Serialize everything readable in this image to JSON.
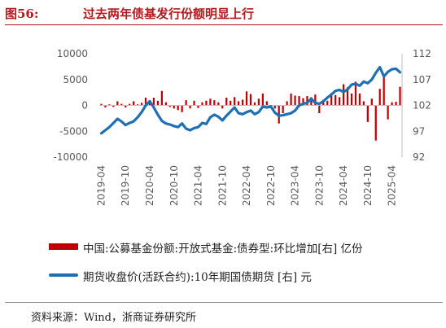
{
  "header": {
    "figure_no": "图56:",
    "title": "过去两年债基发行份额明显上行"
  },
  "legend": {
    "bar_label": "中国:公募基金份额:开放式基金:债券型:环比增加[右] 亿份",
    "line_label": "期货收盘价(活跃合约):10年期国债期货 [右] 元"
  },
  "source": "资料来源：Wind，浙商证券研究所",
  "chart_data": {
    "type": "bar",
    "title": "过去两年债基发行份额明显上行",
    "xlabel": "",
    "ylabel": "",
    "y_left": {
      "min": -10000,
      "max": 10000,
      "ticks": [
        "10000",
        "5000",
        "0",
        "-5000",
        "-10000"
      ]
    },
    "y_right": {
      "min": 92,
      "max": 112,
      "ticks": [
        "112",
        "107",
        "102",
        "97",
        "92"
      ]
    },
    "x_range": [
      "2019-04",
      "2025-06"
    ],
    "x_ticks": [
      "2019-04",
      "2019-10",
      "2020-04",
      "2020-10",
      "2021-04",
      "2021-10",
      "2022-04",
      "2022-10",
      "2023-04",
      "2023-10",
      "2024-04",
      "2024-10",
      "2025-04"
    ],
    "legend_position": "bottom",
    "grid": false,
    "series": [
      {
        "name": "中国:公募基金份额:开放式基金:债券型:环比增加[右] 亿份",
        "type": "bar",
        "axis": "left",
        "color": "#c00000",
        "points": [
          [
            "2019-04",
            300
          ],
          [
            "2019-05",
            -400
          ],
          [
            "2019-06",
            200
          ],
          [
            "2019-07",
            -300
          ],
          [
            "2019-08",
            800
          ],
          [
            "2019-09",
            300
          ],
          [
            "2019-10",
            -400
          ],
          [
            "2019-11",
            300
          ],
          [
            "2019-12",
            800
          ],
          [
            "2020-01",
            200
          ],
          [
            "2020-02",
            500
          ],
          [
            "2020-03",
            1500
          ],
          [
            "2020-04",
            1000
          ],
          [
            "2020-05",
            1500
          ],
          [
            "2020-06",
            900
          ],
          [
            "2020-07",
            2800
          ],
          [
            "2020-08",
            600
          ],
          [
            "2020-09",
            -300
          ],
          [
            "2020-10",
            -600
          ],
          [
            "2020-11",
            -900
          ],
          [
            "2020-12",
            -1300
          ],
          [
            "2021-01",
            1000
          ],
          [
            "2021-02",
            -600
          ],
          [
            "2021-03",
            900
          ],
          [
            "2021-04",
            -500
          ],
          [
            "2021-05",
            600
          ],
          [
            "2021-06",
            900
          ],
          [
            "2021-07",
            1300
          ],
          [
            "2021-08",
            1000
          ],
          [
            "2021-09",
            600
          ],
          [
            "2021-10",
            -600
          ],
          [
            "2021-11",
            1500
          ],
          [
            "2021-12",
            900
          ],
          [
            "2022-01",
            1600
          ],
          [
            "2022-02",
            800
          ],
          [
            "2022-03",
            1100
          ],
          [
            "2022-04",
            2700
          ],
          [
            "2022-05",
            2200
          ],
          [
            "2022-06",
            600
          ],
          [
            "2022-07",
            1300
          ],
          [
            "2022-08",
            2300
          ],
          [
            "2022-09",
            800
          ],
          [
            "2022-10",
            -400
          ],
          [
            "2022-11",
            -600
          ],
          [
            "2022-12",
            -3500
          ],
          [
            "2023-01",
            -1500
          ],
          [
            "2023-02",
            800
          ],
          [
            "2023-03",
            2300
          ],
          [
            "2023-04",
            1900
          ],
          [
            "2023-05",
            1800
          ],
          [
            "2023-06",
            1400
          ],
          [
            "2023-07",
            1800
          ],
          [
            "2023-08",
            1600
          ],
          [
            "2023-09",
            2100
          ],
          [
            "2023-10",
            -1500
          ],
          [
            "2023-11",
            1100
          ],
          [
            "2023-12",
            900
          ],
          [
            "2024-01",
            2400
          ],
          [
            "2024-02",
            2000
          ],
          [
            "2024-03",
            1600
          ],
          [
            "2024-04",
            4100
          ],
          [
            "2024-05",
            3500
          ],
          [
            "2024-06",
            2300
          ],
          [
            "2024-07",
            4600
          ],
          [
            "2024-08",
            2300
          ],
          [
            "2024-09",
            800
          ],
          [
            "2024-10",
            -3200
          ],
          [
            "2024-11",
            1300
          ],
          [
            "2024-12",
            -6800
          ],
          [
            "2025-01",
            3200
          ],
          [
            "2025-02",
            5700
          ],
          [
            "2025-03",
            -2700
          ],
          [
            "2025-04",
            600
          ],
          [
            "2025-05",
            700
          ],
          [
            "2025-06",
            3600
          ]
        ]
      },
      {
        "name": "期货收盘价(活跃合约):10年期国债期货 [右] 元",
        "type": "line",
        "axis": "right",
        "color": "#1f6fb5",
        "points": [
          [
            "2019-04",
            96.6
          ],
          [
            "2019-05",
            97.2
          ],
          [
            "2019-06",
            97.8
          ],
          [
            "2019-07",
            98.6
          ],
          [
            "2019-08",
            99.4
          ],
          [
            "2019-09",
            98.9
          ],
          [
            "2019-10",
            98.2
          ],
          [
            "2019-11",
            98.6
          ],
          [
            "2019-12",
            98.9
          ],
          [
            "2020-01",
            99.7
          ],
          [
            "2020-02",
            100.7
          ],
          [
            "2020-03",
            102.0
          ],
          [
            "2020-04",
            102.8
          ],
          [
            "2020-05",
            101.6
          ],
          [
            "2020-06",
            100.2
          ],
          [
            "2020-07",
            99.0
          ],
          [
            "2020-08",
            98.5
          ],
          [
            "2020-09",
            98.3
          ],
          [
            "2020-10",
            98.0
          ],
          [
            "2020-11",
            97.8
          ],
          [
            "2020-12",
            98.5
          ],
          [
            "2021-01",
            97.5
          ],
          [
            "2021-02",
            97.2
          ],
          [
            "2021-03",
            97.6
          ],
          [
            "2021-04",
            97.8
          ],
          [
            "2021-05",
            98.6
          ],
          [
            "2021-06",
            98.4
          ],
          [
            "2021-07",
            99.7
          ],
          [
            "2021-08",
            100.2
          ],
          [
            "2021-09",
            99.8
          ],
          [
            "2021-10",
            99.1
          ],
          [
            "2021-11",
            100.0
          ],
          [
            "2021-12",
            100.8
          ],
          [
            "2022-01",
            101.6
          ],
          [
            "2022-02",
            100.5
          ],
          [
            "2022-03",
            100.3
          ],
          [
            "2022-04",
            100.7
          ],
          [
            "2022-05",
            101.0
          ],
          [
            "2022-06",
            100.3
          ],
          [
            "2022-07",
            100.7
          ],
          [
            "2022-08",
            101.8
          ],
          [
            "2022-09",
            101.6
          ],
          [
            "2022-10",
            101.8
          ],
          [
            "2022-11",
            100.6
          ],
          [
            "2022-12",
            100.0
          ],
          [
            "2023-01",
            100.1
          ],
          [
            "2023-02",
            100.3
          ],
          [
            "2023-03",
            100.5
          ],
          [
            "2023-04",
            101.0
          ],
          [
            "2023-05",
            102.0
          ],
          [
            "2023-06",
            102.3
          ],
          [
            "2023-07",
            102.5
          ],
          [
            "2023-08",
            103.3
          ],
          [
            "2023-09",
            102.5
          ],
          [
            "2023-10",
            102.3
          ],
          [
            "2023-11",
            102.8
          ],
          [
            "2023-12",
            103.5
          ],
          [
            "2024-01",
            104.1
          ],
          [
            "2024-02",
            104.8
          ],
          [
            "2024-03",
            105.0
          ],
          [
            "2024-04",
            104.6
          ],
          [
            "2024-05",
            105.1
          ],
          [
            "2024-06",
            106.0
          ],
          [
            "2024-07",
            106.2
          ],
          [
            "2024-08",
            105.8
          ],
          [
            "2024-09",
            106.6
          ],
          [
            "2024-10",
            106.3
          ],
          [
            "2024-11",
            107.0
          ],
          [
            "2024-12",
            108.3
          ],
          [
            "2025-01",
            109.4
          ],
          [
            "2025-02",
            107.6
          ],
          [
            "2025-03",
            108.5
          ],
          [
            "2025-04",
            109.0
          ],
          [
            "2025-05",
            109.1
          ],
          [
            "2025-06",
            108.4
          ]
        ]
      }
    ]
  }
}
